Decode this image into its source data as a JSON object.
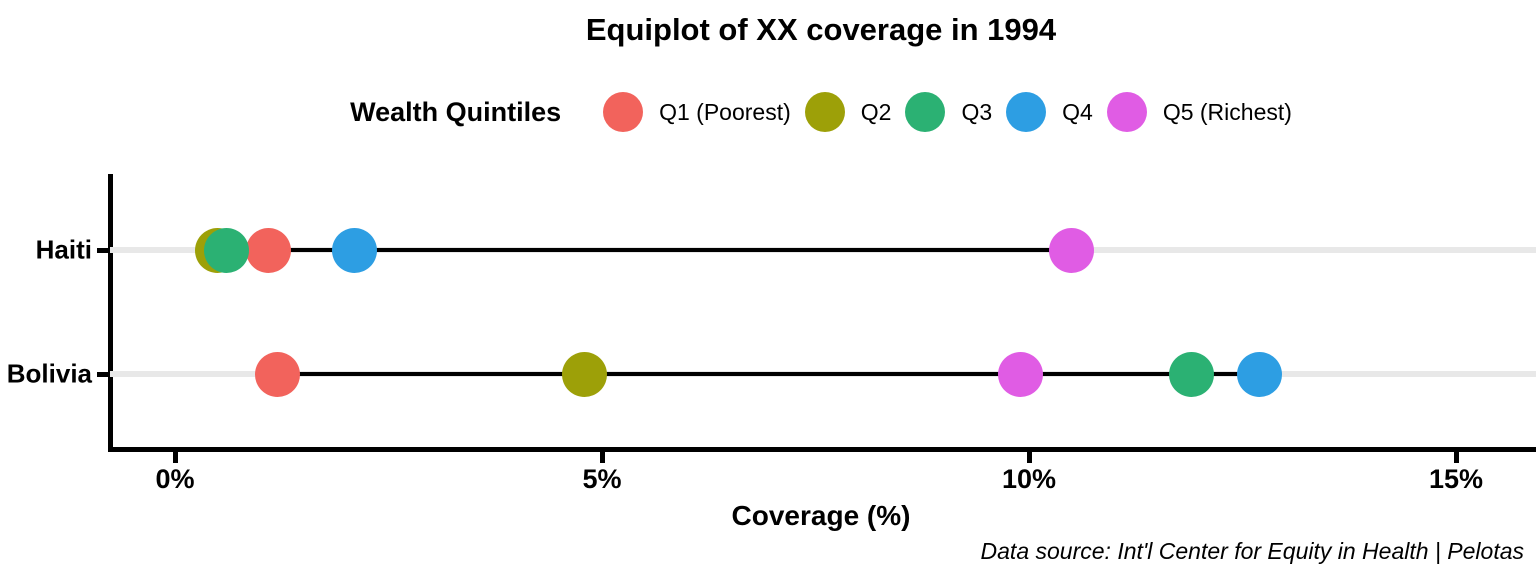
{
  "legend_title": "Wealth Quintiles",
  "footer": "Data source: Int'l Center for Equity in Health | Pelotas",
  "colors": {
    "gridline": "#E8E8E8",
    "axis": "#000000",
    "connector": "#000000",
    "q1": "#F2635C",
    "q2": "#9DA008",
    "q3": "#2BB173",
    "q4": "#2D9EE3",
    "q5": "#E05CE4"
  },
  "chart_data": {
    "type": "scatter",
    "subtype": "equiplot (dot plot with min-max connector per category)",
    "title": "Equiplot of XX coverage in 1994",
    "xlabel": "Coverage (%)",
    "categories": [
      "Haiti",
      "Bolivia"
    ],
    "series": [
      {
        "name": "Q1 (Poorest)",
        "color": "#F2635C",
        "values": [
          1.1,
          1.2
        ]
      },
      {
        "name": "Q2",
        "color": "#9DA008",
        "values": [
          0.5,
          4.8
        ]
      },
      {
        "name": "Q3",
        "color": "#2BB173",
        "values": [
          0.6,
          11.9
        ]
      },
      {
        "name": "Q4",
        "color": "#2D9EE3",
        "values": [
          2.1,
          12.7
        ]
      },
      {
        "name": "Q5 (Richest)",
        "color": "#E05CE4",
        "values": [
          10.5,
          9.9
        ]
      }
    ],
    "x_ticks": [
      {
        "label": "0%",
        "value": 0
      },
      {
        "label": "5%",
        "value": 5
      },
      {
        "label": "10%",
        "value": 10
      },
      {
        "label": "15%",
        "value": 15
      }
    ],
    "xlim": [
      0,
      15.9
    ],
    "legend_position": "top",
    "grid": "light horizontal line per category, full panel width",
    "connector": "black line from minimum to maximum quintile value in each row"
  }
}
